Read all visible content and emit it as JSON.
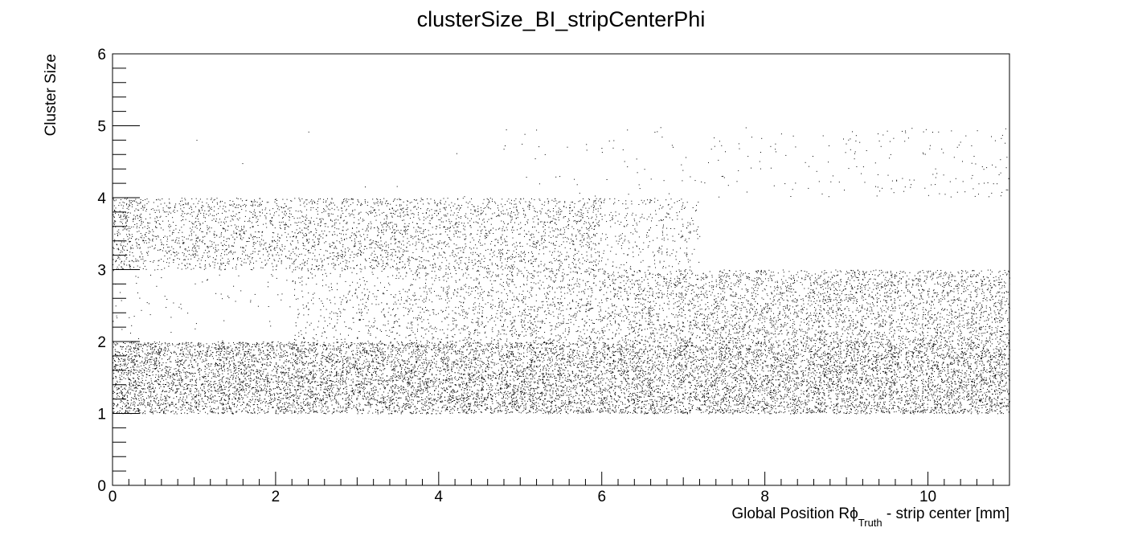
{
  "chart_data": {
    "type": "scatter",
    "title": "clusterSize_BI_stripCenterPhi",
    "xlabel": {
      "main": "Global Position R",
      "symbol": "ϕ",
      "subscript": "Truth",
      "suffix": " - strip center [mm]"
    },
    "ylabel": "Cluster Size",
    "xlim": [
      0,
      11
    ],
    "ylim": [
      0,
      6
    ],
    "x_ticks": [
      "0",
      "2",
      "4",
      "6",
      "8",
      "10"
    ],
    "y_ticks": [
      "0",
      "1",
      "2",
      "3",
      "4",
      "5",
      "6"
    ],
    "grid": false,
    "legend": "none",
    "marker_color": "#000000",
    "series": [
      {
        "cluster_size": 1,
        "x": [
          0,
          11
        ],
        "y": [
          1,
          2
        ],
        "density": "high everywhere"
      },
      {
        "cluster_size": 2,
        "x": [
          0,
          11
        ],
        "y": [
          2,
          3
        ],
        "density": "sparse below 2 mm, rising with x"
      },
      {
        "cluster_size": 3,
        "x": [
          0,
          7
        ],
        "y": [
          3,
          4
        ],
        "density": "moderate, fading toward 7 mm"
      },
      {
        "cluster_size": 4,
        "x": [
          1,
          11
        ],
        "y": [
          4,
          5
        ],
        "density": "sparse, increasing with x"
      }
    ]
  }
}
